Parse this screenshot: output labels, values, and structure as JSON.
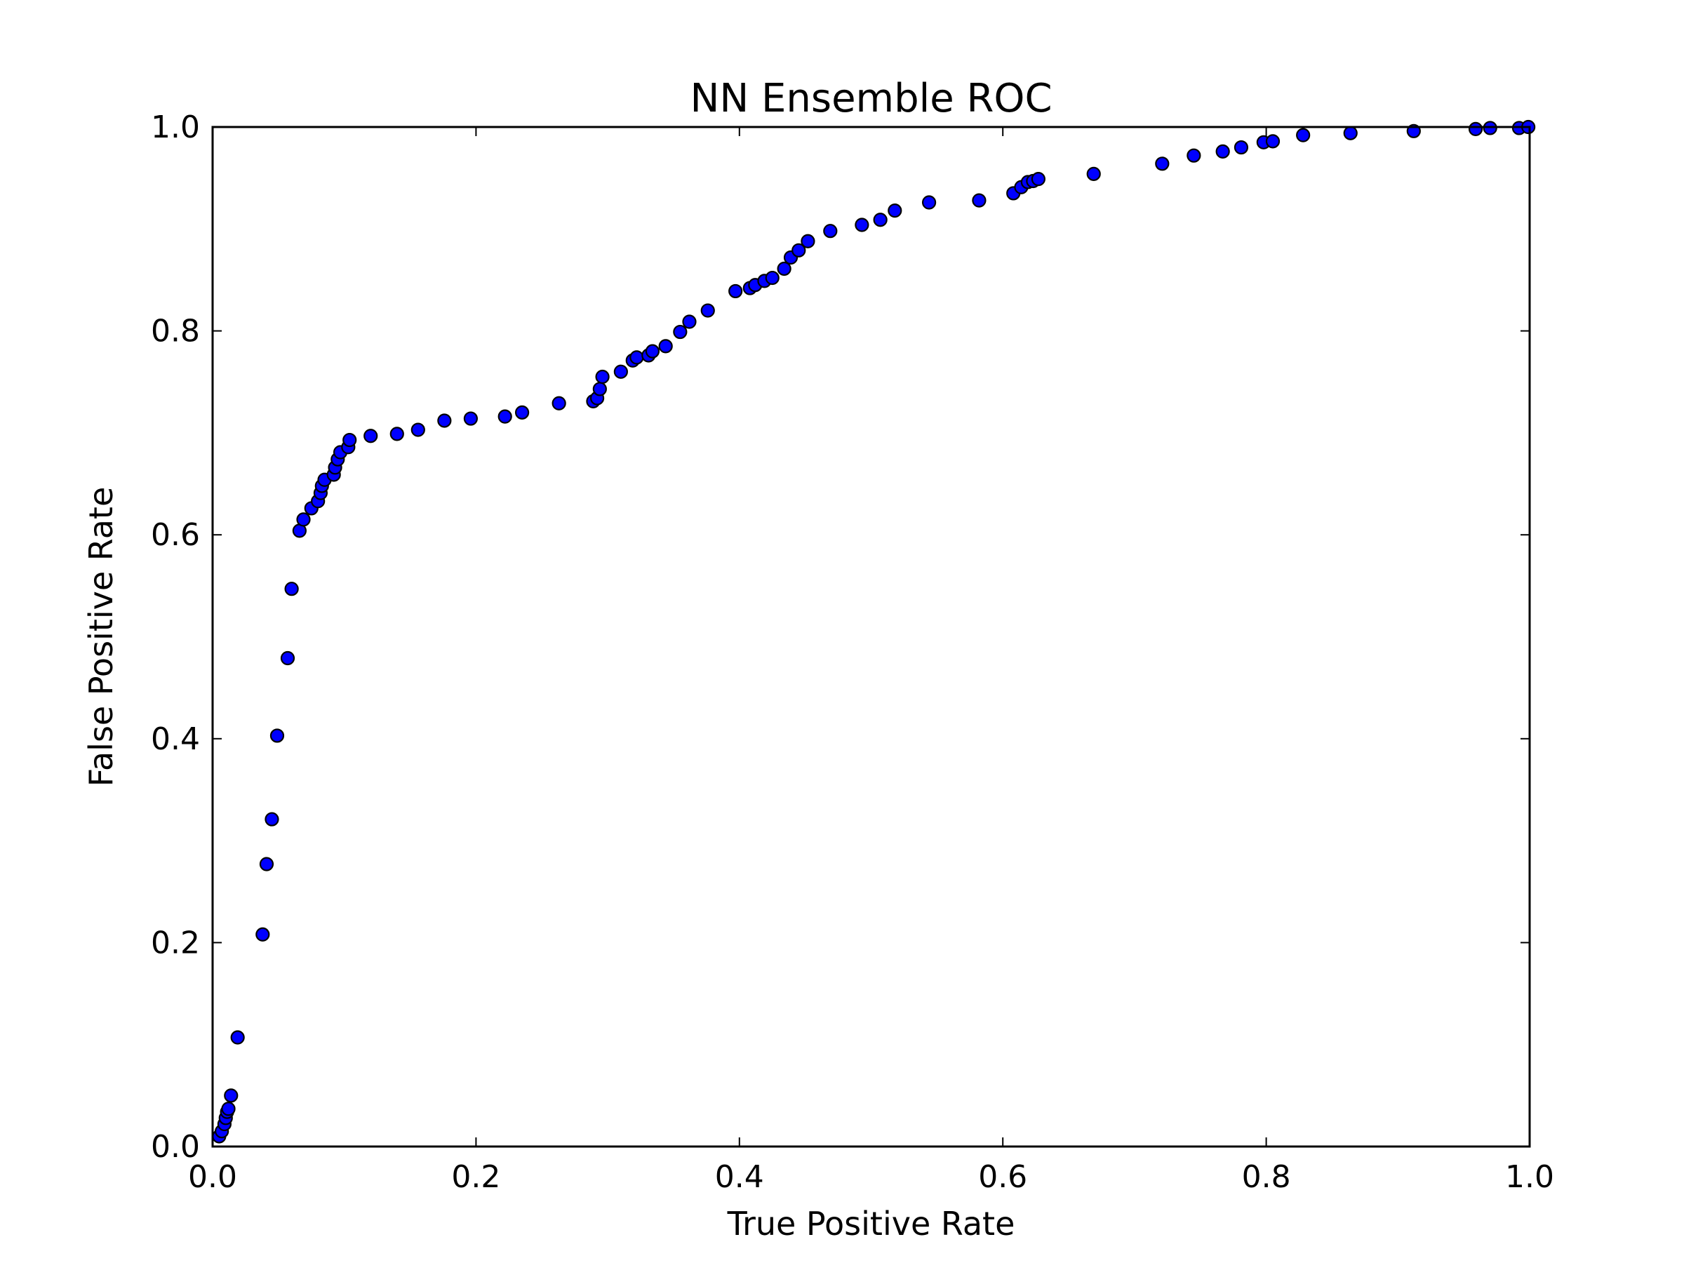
{
  "chart_data": {
    "type": "scatter",
    "title": "NN Ensemble ROC",
    "xlabel": "True Positive Rate",
    "ylabel": "False Positive Rate",
    "xlim": [
      0.0,
      1.0
    ],
    "ylim": [
      0.0,
      1.0
    ],
    "xticks": [
      "0.0",
      "0.2",
      "0.4",
      "0.6",
      "0.8",
      "1.0"
    ],
    "yticks": [
      "0.0",
      "0.2",
      "0.4",
      "0.6",
      "0.8",
      "1.0"
    ],
    "grid": false,
    "marker_color": "#0000ff",
    "marker_edge": "#000000",
    "points": [
      [
        0.005,
        0.01
      ],
      [
        0.007,
        0.015
      ],
      [
        0.009,
        0.022
      ],
      [
        0.01,
        0.028
      ],
      [
        0.011,
        0.034
      ],
      [
        0.012,
        0.037
      ],
      [
        0.014,
        0.05
      ],
      [
        0.019,
        0.107
      ],
      [
        0.038,
        0.208
      ],
      [
        0.041,
        0.277
      ],
      [
        0.045,
        0.321
      ],
      [
        0.049,
        0.403
      ],
      [
        0.057,
        0.479
      ],
      [
        0.06,
        0.547
      ],
      [
        0.066,
        0.604
      ],
      [
        0.069,
        0.615
      ],
      [
        0.075,
        0.626
      ],
      [
        0.08,
        0.633
      ],
      [
        0.082,
        0.641
      ],
      [
        0.083,
        0.648
      ],
      [
        0.085,
        0.654
      ],
      [
        0.092,
        0.659
      ],
      [
        0.093,
        0.666
      ],
      [
        0.095,
        0.674
      ],
      [
        0.097,
        0.681
      ],
      [
        0.103,
        0.686
      ],
      [
        0.104,
        0.693
      ],
      [
        0.12,
        0.697
      ],
      [
        0.14,
        0.699
      ],
      [
        0.156,
        0.703
      ],
      [
        0.176,
        0.712
      ],
      [
        0.196,
        0.714
      ],
      [
        0.222,
        0.716
      ],
      [
        0.235,
        0.72
      ],
      [
        0.263,
        0.729
      ],
      [
        0.289,
        0.731
      ],
      [
        0.292,
        0.734
      ],
      [
        0.294,
        0.743
      ],
      [
        0.296,
        0.755
      ],
      [
        0.31,
        0.76
      ],
      [
        0.319,
        0.771
      ],
      [
        0.322,
        0.774
      ],
      [
        0.331,
        0.776
      ],
      [
        0.334,
        0.78
      ],
      [
        0.344,
        0.785
      ],
      [
        0.355,
        0.799
      ],
      [
        0.362,
        0.809
      ],
      [
        0.376,
        0.82
      ],
      [
        0.397,
        0.839
      ],
      [
        0.408,
        0.842
      ],
      [
        0.412,
        0.845
      ],
      [
        0.419,
        0.849
      ],
      [
        0.425,
        0.852
      ],
      [
        0.434,
        0.861
      ],
      [
        0.439,
        0.872
      ],
      [
        0.445,
        0.879
      ],
      [
        0.452,
        0.888
      ],
      [
        0.469,
        0.898
      ],
      [
        0.493,
        0.904
      ],
      [
        0.507,
        0.909
      ],
      [
        0.518,
        0.918
      ],
      [
        0.544,
        0.926
      ],
      [
        0.582,
        0.928
      ],
      [
        0.608,
        0.935
      ],
      [
        0.614,
        0.941
      ],
      [
        0.619,
        0.946
      ],
      [
        0.623,
        0.947
      ],
      [
        0.627,
        0.949
      ],
      [
        0.669,
        0.954
      ],
      [
        0.721,
        0.964
      ],
      [
        0.745,
        0.972
      ],
      [
        0.767,
        0.976
      ],
      [
        0.781,
        0.98
      ],
      [
        0.798,
        0.985
      ],
      [
        0.805,
        0.986
      ],
      [
        0.828,
        0.992
      ],
      [
        0.864,
        0.994
      ],
      [
        0.912,
        0.996
      ],
      [
        0.959,
        0.998
      ],
      [
        0.97,
        0.999
      ],
      [
        0.992,
        0.999
      ],
      [
        0.999,
        1.0
      ]
    ]
  }
}
